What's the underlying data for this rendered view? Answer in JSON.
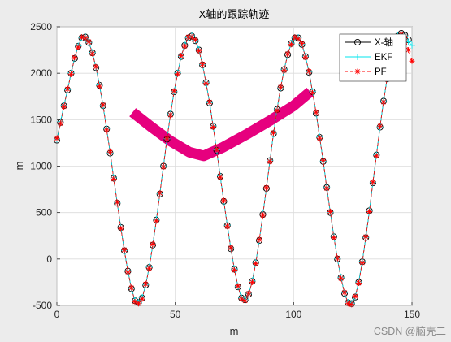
{
  "chart_data": {
    "type": "line",
    "title": "X轴的跟踪轨迹",
    "xlabel": "m",
    "ylabel": "m",
    "xlim": [
      0,
      150
    ],
    "ylim": [
      -500,
      2500
    ],
    "xticks": [
      0,
      50,
      100,
      150
    ],
    "yticks": [
      -500,
      0,
      500,
      1000,
      1500,
      2000,
      2500
    ],
    "grid": true,
    "legend_position": "top-right",
    "series": [
      {
        "name": "X-轴",
        "color": "#000000",
        "marker": "circle",
        "points": [
          [
            0,
            1280
          ],
          [
            1.5,
            1470
          ],
          [
            3,
            1650
          ],
          [
            4.5,
            1820
          ],
          [
            6,
            2000
          ],
          [
            7.5,
            2160
          ],
          [
            9,
            2290
          ],
          [
            10.5,
            2380
          ],
          [
            12,
            2390
          ],
          [
            13.5,
            2330
          ],
          [
            15,
            2220
          ],
          [
            16.5,
            2060
          ],
          [
            18,
            1870
          ],
          [
            19.5,
            1650
          ],
          [
            21,
            1400
          ],
          [
            22.5,
            1140
          ],
          [
            24,
            870
          ],
          [
            25.5,
            600
          ],
          [
            27,
            340
          ],
          [
            28.5,
            90
          ],
          [
            30,
            -130
          ],
          [
            31.5,
            -320
          ],
          [
            33,
            -450
          ],
          [
            34.5,
            -470
          ],
          [
            36,
            -420
          ],
          [
            37.5,
            -280
          ],
          [
            39,
            -90
          ],
          [
            40.5,
            150
          ],
          [
            42,
            420
          ],
          [
            43.5,
            700
          ],
          [
            45,
            1000
          ],
          [
            46.5,
            1290
          ],
          [
            48,
            1560
          ],
          [
            49.5,
            1800
          ],
          [
            51,
            2000
          ],
          [
            52.5,
            2180
          ],
          [
            54,
            2300
          ],
          [
            55.5,
            2380
          ],
          [
            57,
            2400
          ],
          [
            58.5,
            2350
          ],
          [
            60,
            2250
          ],
          [
            61.5,
            2090
          ],
          [
            63,
            1900
          ],
          [
            64.5,
            1680
          ],
          [
            66,
            1430
          ],
          [
            67.5,
            1170
          ],
          [
            69,
            890
          ],
          [
            70.5,
            620
          ],
          [
            72,
            360
          ],
          [
            73.5,
            110
          ],
          [
            75,
            -110
          ],
          [
            76.5,
            -300
          ],
          [
            78,
            -420
          ],
          [
            79.5,
            -440
          ],
          [
            81,
            -380
          ],
          [
            82.5,
            -240
          ],
          [
            84,
            -40
          ],
          [
            85.5,
            200
          ],
          [
            87,
            480
          ],
          [
            88.5,
            760
          ],
          [
            90,
            1060
          ],
          [
            91.5,
            1350
          ],
          [
            93,
            1610
          ],
          [
            94.5,
            1840
          ],
          [
            96,
            2040
          ],
          [
            97.5,
            2200
          ],
          [
            99,
            2320
          ],
          [
            100.5,
            2380
          ],
          [
            102,
            2380
          ],
          [
            103.5,
            2310
          ],
          [
            105,
            2180
          ],
          [
            106.5,
            2010
          ],
          [
            108,
            1800
          ],
          [
            109.5,
            1570
          ],
          [
            111,
            1310
          ],
          [
            112.5,
            1050
          ],
          [
            114,
            770
          ],
          [
            115.5,
            500
          ],
          [
            117,
            240
          ],
          [
            118.5,
            0
          ],
          [
            120,
            -200
          ],
          [
            121.5,
            -370
          ],
          [
            123,
            -470
          ],
          [
            124.5,
            -480
          ],
          [
            126,
            -410
          ],
          [
            127.5,
            -250
          ],
          [
            129,
            -30
          ],
          [
            130.5,
            230
          ],
          [
            132,
            520
          ],
          [
            133.5,
            820
          ],
          [
            135,
            1120
          ],
          [
            136.5,
            1420
          ],
          [
            138,
            1700
          ],
          [
            139.5,
            1940
          ],
          [
            141,
            2150
          ],
          [
            142.5,
            2300
          ],
          [
            144,
            2400
          ],
          [
            145.5,
            2430
          ],
          [
            147,
            2410
          ],
          [
            148.5,
            2360
          ]
        ]
      },
      {
        "name": "EKF",
        "color": "#00e5ee",
        "marker": "plus",
        "points": [
          [
            0,
            1290
          ],
          [
            1.5,
            1480
          ],
          [
            3,
            1655
          ],
          [
            4.5,
            1825
          ],
          [
            6,
            2005
          ],
          [
            7.5,
            2165
          ],
          [
            9,
            2295
          ],
          [
            10.5,
            2385
          ],
          [
            12,
            2395
          ],
          [
            13.5,
            2335
          ],
          [
            15,
            2225
          ],
          [
            16.5,
            2065
          ],
          [
            18,
            1875
          ],
          [
            19.5,
            1655
          ],
          [
            21,
            1405
          ],
          [
            22.5,
            1145
          ],
          [
            24,
            875
          ],
          [
            25.5,
            605
          ],
          [
            27,
            345
          ],
          [
            28.5,
            95
          ],
          [
            30,
            -125
          ],
          [
            31.5,
            -315
          ],
          [
            33,
            -445
          ],
          [
            34.5,
            -465
          ],
          [
            36,
            -415
          ],
          [
            37.5,
            -275
          ],
          [
            39,
            -85
          ],
          [
            40.5,
            155
          ],
          [
            42,
            425
          ],
          [
            43.5,
            705
          ],
          [
            45,
            1005
          ],
          [
            46.5,
            1295
          ],
          [
            48,
            1565
          ],
          [
            49.5,
            1805
          ],
          [
            51,
            2005
          ],
          [
            52.5,
            2185
          ],
          [
            54,
            2305
          ],
          [
            55.5,
            2385
          ],
          [
            57,
            2405
          ],
          [
            58.5,
            2355
          ],
          [
            60,
            2255
          ],
          [
            61.5,
            2095
          ],
          [
            63,
            1905
          ],
          [
            64.5,
            1685
          ],
          [
            66,
            1435
          ],
          [
            67.5,
            1175
          ],
          [
            69,
            895
          ],
          [
            70.5,
            625
          ],
          [
            72,
            365
          ],
          [
            73.5,
            115
          ],
          [
            75,
            -105
          ],
          [
            76.5,
            -295
          ],
          [
            78,
            -415
          ],
          [
            79.5,
            -435
          ],
          [
            81,
            -375
          ],
          [
            82.5,
            -235
          ],
          [
            84,
            -35
          ],
          [
            85.5,
            205
          ],
          [
            87,
            485
          ],
          [
            88.5,
            765
          ],
          [
            90,
            1065
          ],
          [
            91.5,
            1355
          ],
          [
            93,
            1615
          ],
          [
            94.5,
            1845
          ],
          [
            96,
            2045
          ],
          [
            97.5,
            2205
          ],
          [
            99,
            2325
          ],
          [
            100.5,
            2385
          ],
          [
            102,
            2385
          ],
          [
            103.5,
            2315
          ],
          [
            105,
            2185
          ],
          [
            106.5,
            2015
          ],
          [
            108,
            1805
          ],
          [
            109.5,
            1575
          ],
          [
            111,
            1315
          ],
          [
            112.5,
            1055
          ],
          [
            114,
            775
          ],
          [
            115.5,
            505
          ],
          [
            117,
            245
          ],
          [
            118.5,
            5
          ],
          [
            120,
            -195
          ],
          [
            121.5,
            -365
          ],
          [
            123,
            -465
          ],
          [
            124.5,
            -475
          ],
          [
            126,
            -405
          ],
          [
            127.5,
            -245
          ],
          [
            129,
            -25
          ],
          [
            130.5,
            235
          ],
          [
            132,
            525
          ],
          [
            133.5,
            825
          ],
          [
            135,
            1125
          ],
          [
            136.5,
            1425
          ],
          [
            138,
            1705
          ],
          [
            139.5,
            1945
          ],
          [
            141,
            2155
          ],
          [
            142.5,
            2305
          ],
          [
            144,
            2405
          ],
          [
            145.5,
            2420
          ],
          [
            147,
            2400
          ],
          [
            148.5,
            2340
          ],
          [
            150,
            2300
          ]
        ]
      },
      {
        "name": "PF",
        "color": "#ff0000",
        "marker": "star",
        "points": [
          [
            0,
            1300
          ],
          [
            1.5,
            1460
          ],
          [
            3,
            1640
          ],
          [
            4.5,
            1830
          ],
          [
            6,
            1990
          ],
          [
            7.5,
            2170
          ],
          [
            9,
            2280
          ],
          [
            10.5,
            2390
          ],
          [
            12,
            2380
          ],
          [
            13.5,
            2340
          ],
          [
            15,
            2210
          ],
          [
            16.5,
            2070
          ],
          [
            18,
            1860
          ],
          [
            19.5,
            1660
          ],
          [
            21,
            1390
          ],
          [
            22.5,
            1150
          ],
          [
            24,
            860
          ],
          [
            25.5,
            610
          ],
          [
            27,
            330
          ],
          [
            28.5,
            100
          ],
          [
            30,
            -140
          ],
          [
            31.5,
            -310
          ],
          [
            33,
            -460
          ],
          [
            34.5,
            -480
          ],
          [
            36,
            -430
          ],
          [
            37.5,
            -270
          ],
          [
            39,
            -100
          ],
          [
            40.5,
            160
          ],
          [
            42,
            410
          ],
          [
            43.5,
            710
          ],
          [
            45,
            990
          ],
          [
            46.5,
            1300
          ],
          [
            48,
            1550
          ],
          [
            49.5,
            1810
          ],
          [
            51,
            1990
          ],
          [
            52.5,
            2190
          ],
          [
            54,
            2290
          ],
          [
            55.5,
            2390
          ],
          [
            57,
            2390
          ],
          [
            58.5,
            2360
          ],
          [
            60,
            2240
          ],
          [
            61.5,
            2100
          ],
          [
            63,
            1890
          ],
          [
            64.5,
            1690
          ],
          [
            66,
            1420
          ],
          [
            67.5,
            1180
          ],
          [
            69,
            880
          ],
          [
            70.5,
            630
          ],
          [
            72,
            350
          ],
          [
            73.5,
            120
          ],
          [
            75,
            -120
          ],
          [
            76.5,
            -290
          ],
          [
            78,
            -430
          ],
          [
            79.5,
            -450
          ],
          [
            81,
            -370
          ],
          [
            82.5,
            -250
          ],
          [
            84,
            -50
          ],
          [
            85.5,
            210
          ],
          [
            87,
            470
          ],
          [
            88.5,
            770
          ],
          [
            90,
            1050
          ],
          [
            91.5,
            1360
          ],
          [
            93,
            1600
          ],
          [
            94.5,
            1850
          ],
          [
            96,
            2030
          ],
          [
            97.5,
            2210
          ],
          [
            99,
            2310
          ],
          [
            100.5,
            2390
          ],
          [
            102,
            2370
          ],
          [
            103.5,
            2320
          ],
          [
            105,
            2170
          ],
          [
            106.5,
            2020
          ],
          [
            108,
            1790
          ],
          [
            109.5,
            1580
          ],
          [
            111,
            1300
          ],
          [
            112.5,
            1060
          ],
          [
            114,
            760
          ],
          [
            115.5,
            510
          ],
          [
            117,
            230
          ],
          [
            118.5,
            10
          ],
          [
            120,
            -210
          ],
          [
            121.5,
            -360
          ],
          [
            123,
            -480
          ],
          [
            124.5,
            -490
          ],
          [
            126,
            -400
          ],
          [
            127.5,
            -260
          ],
          [
            129,
            -40
          ],
          [
            130.5,
            240
          ],
          [
            132,
            510
          ],
          [
            133.5,
            830
          ],
          [
            135,
            1110
          ],
          [
            136.5,
            1430
          ],
          [
            138,
            1690
          ],
          [
            139.5,
            1950
          ],
          [
            141,
            2140
          ],
          [
            142.5,
            2310
          ],
          [
            144,
            2390
          ],
          [
            145.5,
            2420
          ],
          [
            147,
            2380
          ],
          [
            148.5,
            2250
          ],
          [
            150,
            2130
          ]
        ]
      }
    ],
    "overlay": {
      "color": "#e6007e",
      "points": [
        [
          32,
          1580
        ],
        [
          40,
          1420
        ],
        [
          48,
          1270
        ],
        [
          56,
          1150
        ],
        [
          62,
          1110
        ],
        [
          70,
          1200
        ],
        [
          80,
          1340
        ],
        [
          90,
          1490
        ],
        [
          100,
          1650
        ],
        [
          107,
          1800
        ]
      ]
    }
  },
  "watermark": "CSDN @脑壳二"
}
